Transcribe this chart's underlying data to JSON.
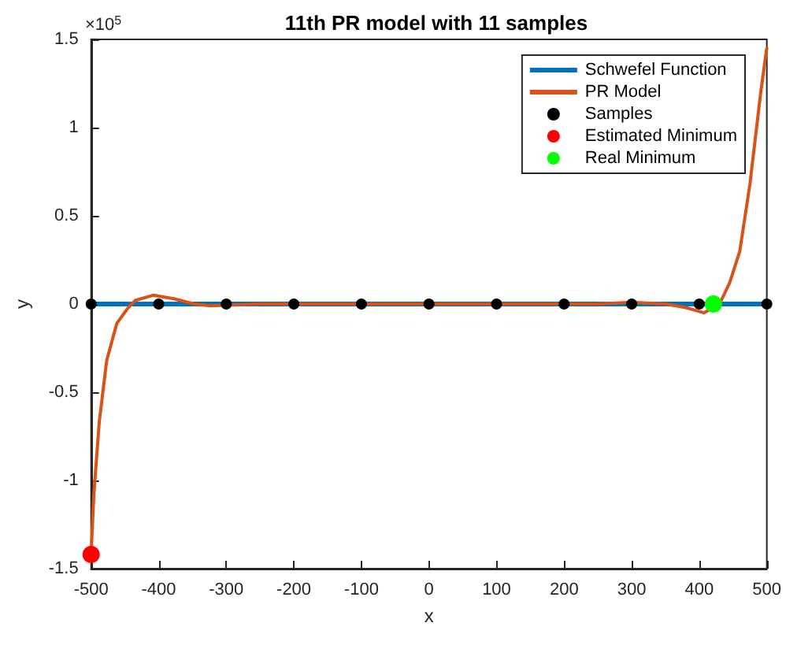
{
  "chart_data": {
    "type": "line",
    "title": "11th PR model with 11 samples",
    "xlabel": "x",
    "ylabel": "y",
    "annotations": [
      "×10$^{5}$"
    ],
    "xlim": [
      -500,
      500
    ],
    "xticks": [
      -500,
      -400,
      -300,
      -200,
      -100,
      0,
      100,
      200,
      300,
      400,
      500
    ],
    "ylim": [
      -1.5,
      1.5
    ],
    "yticks": [
      -1.5,
      -1,
      -0.5,
      0,
      0.5,
      1,
      1.5
    ],
    "grid": false,
    "legend": "top right",
    "series": [
      {
        "name": "Schwefel Function",
        "color": "#0072bd",
        "x": [
          -500,
          -400,
          -300,
          -200,
          -100,
          0,
          100,
          200,
          300,
          400,
          500
        ],
        "values": [
          0,
          0,
          0,
          0,
          0,
          0,
          0,
          0,
          0,
          0,
          0
        ]
      },
      {
        "name": "PR Model",
        "color": "#d95319",
        "x": [
          -500,
          -496,
          -488,
          -477,
          -462,
          -447,
          -435,
          -408,
          -378,
          -347,
          -324,
          -250,
          -200,
          -100,
          0,
          100,
          200,
          250,
          300,
          350,
          380,
          407,
          430,
          445,
          460,
          475,
          491,
          498,
          500
        ],
        "values": [
          -1.42,
          -1.08,
          -0.67,
          -0.32,
          -0.11,
          -0.03,
          0.02,
          0.05,
          0.03,
          0,
          -0.01,
          0,
          0,
          0,
          0,
          0,
          0,
          0,
          0.01,
          0,
          -0.02,
          -0.05,
          0,
          0.12,
          0.3,
          0.68,
          1.2,
          1.4,
          1.45
        ]
      },
      {
        "name": "Samples",
        "type": "scatter",
        "color": "#000000",
        "x": [
          -500,
          -400,
          -300,
          -200,
          -100,
          0,
          100,
          200,
          300,
          400,
          500
        ],
        "values": [
          0,
          0,
          0,
          0,
          0,
          0,
          0,
          0,
          0,
          0,
          0
        ]
      },
      {
        "name": "Estimated Minimum",
        "type": "scatter",
        "color": "#ff0000",
        "x": [
          -500
        ],
        "values": [
          -1.42
        ]
      },
      {
        "name": "Real Minimum",
        "type": "scatter",
        "color": "#00ff00",
        "x": [
          421
        ],
        "values": [
          0
        ]
      }
    ]
  }
}
